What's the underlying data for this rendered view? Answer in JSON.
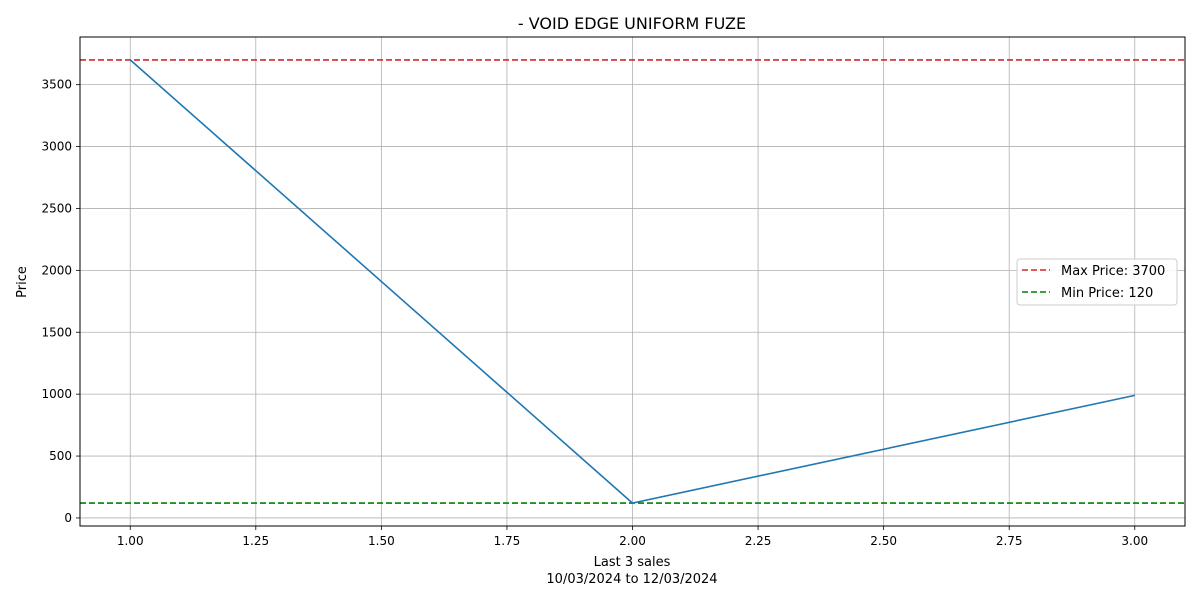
{
  "chart_data": {
    "type": "line",
    "title": "- VOID EDGE UNIFORM FUZE",
    "xlabel": "Last 3 sales",
    "xlabel_sub": "10/03/2024 to 12/03/2024",
    "ylabel": "Price",
    "xlim": [
      0.9,
      3.1
    ],
    "ylim": [
      -65,
      3885
    ],
    "xticks": [
      1.0,
      1.25,
      1.5,
      1.75,
      2.0,
      2.25,
      2.5,
      2.75,
      3.0
    ],
    "xtick_labels": [
      "1.00",
      "1.25",
      "1.50",
      "1.75",
      "2.00",
      "2.25",
      "2.50",
      "2.75",
      "3.00"
    ],
    "yticks": [
      0,
      500,
      1000,
      1500,
      2000,
      2500,
      3000,
      3500
    ],
    "ytick_labels": [
      "0",
      "500",
      "1000",
      "1500",
      "2000",
      "2500",
      "3000",
      "3500"
    ],
    "grid": true,
    "series": [
      {
        "x": [
          1,
          2,
          3
        ],
        "values": [
          3700,
          120,
          990
        ],
        "color": "#1f77b4"
      }
    ],
    "reference_lines": [
      {
        "name": "Max Price: 3700",
        "y": 3700,
        "color": "#d62728",
        "style": "dashed"
      },
      {
        "name": "Min Price: 120",
        "y": 120,
        "color": "#008000",
        "style": "dashed"
      }
    ],
    "legend_position": "center-right"
  }
}
